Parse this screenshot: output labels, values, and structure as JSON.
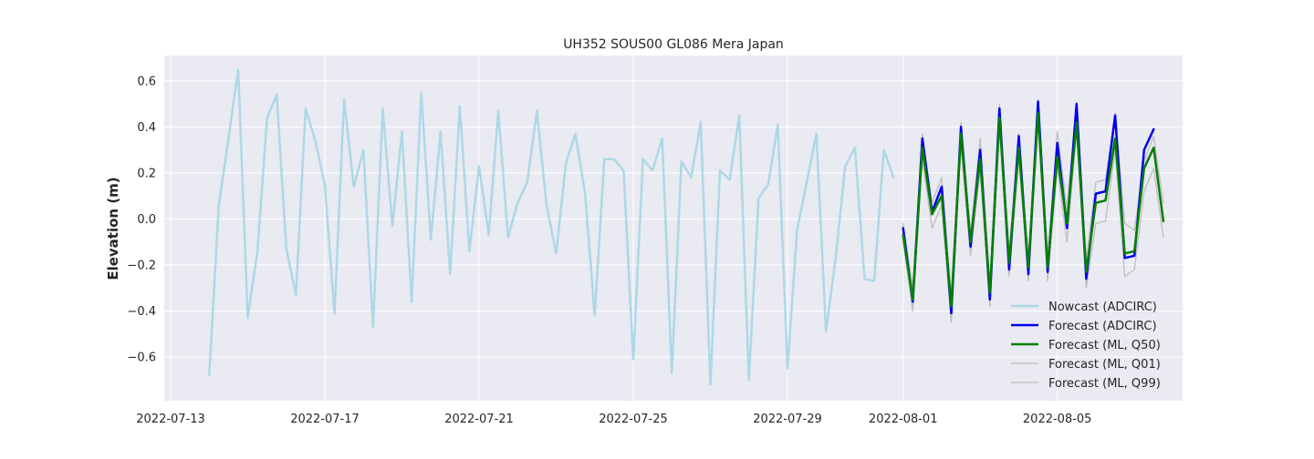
{
  "chart_data": {
    "type": "line",
    "title": "UH352 SOUS00 GL086 Mera Japan",
    "xlabel": "",
    "ylabel": "Elevation (m)",
    "xlim": [
      "2022-07-12T20:00",
      "2022-08-08T06:00"
    ],
    "ylim": [
      -0.79,
      0.71
    ],
    "x_ticks": [
      "2022-07-13",
      "2022-07-17",
      "2022-07-21",
      "2022-07-25",
      "2022-07-29",
      "2022-08-01",
      "2022-08-05"
    ],
    "y_ticks": [
      -0.6,
      -0.4,
      -0.2,
      0.0,
      0.2,
      0.4,
      0.6
    ],
    "y_tick_labels": [
      "−0.6",
      "−0.4",
      "−0.2",
      "0.0",
      "0.2",
      "0.4",
      "0.6"
    ],
    "grid": true,
    "legend_position": "lower-right",
    "series": [
      {
        "name": "Nowcast (ADCIRC)",
        "color": "#add8e6",
        "x": [
          "2022-07-14T00:00",
          "2022-07-14T06:00",
          "2022-07-14T12:00",
          "2022-07-14T18:00",
          "2022-07-15T00:00",
          "2022-07-15T06:00",
          "2022-07-15T12:00",
          "2022-07-15T18:00",
          "2022-07-16T00:00",
          "2022-07-16T06:00",
          "2022-07-16T12:00",
          "2022-07-16T18:00",
          "2022-07-17T00:00",
          "2022-07-17T06:00",
          "2022-07-17T12:00",
          "2022-07-17T18:00",
          "2022-07-18T00:00",
          "2022-07-18T06:00",
          "2022-07-18T12:00",
          "2022-07-18T18:00",
          "2022-07-19T00:00",
          "2022-07-19T06:00",
          "2022-07-19T12:00",
          "2022-07-19T18:00",
          "2022-07-20T00:00",
          "2022-07-20T06:00",
          "2022-07-20T12:00",
          "2022-07-20T18:00",
          "2022-07-21T00:00",
          "2022-07-21T06:00",
          "2022-07-21T12:00",
          "2022-07-21T18:00",
          "2022-07-22T00:00",
          "2022-07-22T06:00",
          "2022-07-22T12:00",
          "2022-07-22T18:00",
          "2022-07-23T00:00",
          "2022-07-23T06:00",
          "2022-07-23T12:00",
          "2022-07-23T18:00",
          "2022-07-24T00:00",
          "2022-07-24T06:00",
          "2022-07-24T12:00",
          "2022-07-24T18:00",
          "2022-07-25T00:00",
          "2022-07-25T06:00",
          "2022-07-25T12:00",
          "2022-07-25T18:00",
          "2022-07-26T00:00",
          "2022-07-26T06:00",
          "2022-07-26T12:00",
          "2022-07-26T18:00",
          "2022-07-27T00:00",
          "2022-07-27T06:00",
          "2022-07-27T12:00",
          "2022-07-27T18:00",
          "2022-07-28T00:00",
          "2022-07-28T06:00",
          "2022-07-28T12:00",
          "2022-07-28T18:00",
          "2022-07-29T00:00",
          "2022-07-29T06:00",
          "2022-07-29T12:00",
          "2022-07-29T18:00",
          "2022-07-30T00:00",
          "2022-07-30T06:00",
          "2022-07-30T12:00",
          "2022-07-30T18:00",
          "2022-07-31T00:00",
          "2022-07-31T06:00",
          "2022-07-31T12:00",
          "2022-07-31T18:00"
        ],
        "values": [
          -0.68,
          0.06,
          0.35,
          0.65,
          -0.43,
          -0.14,
          0.44,
          0.54,
          -0.13,
          -0.33,
          0.48,
          0.34,
          0.15,
          -0.41,
          0.52,
          0.14,
          0.3,
          -0.47,
          0.48,
          -0.03,
          0.38,
          -0.36,
          0.55,
          -0.09,
          0.38,
          -0.24,
          0.49,
          -0.14,
          0.23,
          -0.07,
          0.47,
          -0.08,
          0.07,
          0.16,
          0.47,
          0.06,
          -0.15,
          0.24,
          0.37,
          0.11,
          -0.42,
          0.26,
          0.26,
          0.21,
          -0.61,
          0.26,
          0.21,
          0.35,
          -0.67,
          0.25,
          0.18,
          0.42,
          -0.72,
          0.21,
          0.17,
          0.45,
          -0.7,
          0.09,
          0.15,
          0.41,
          -0.65,
          -0.05,
          0.16,
          0.37,
          -0.49,
          -0.17,
          0.23,
          0.31,
          -0.26,
          -0.27,
          0.3,
          0.18
        ]
      },
      {
        "name": "Forecast (ADCIRC)",
        "color": "#0000ee",
        "x": [
          "2022-08-01T00:00",
          "2022-08-01T06:00",
          "2022-08-01T12:00",
          "2022-08-01T18:00",
          "2022-08-02T00:00",
          "2022-08-02T06:00",
          "2022-08-02T12:00",
          "2022-08-02T18:00",
          "2022-08-03T00:00",
          "2022-08-03T06:00",
          "2022-08-03T12:00",
          "2022-08-03T18:00",
          "2022-08-04T00:00",
          "2022-08-04T06:00",
          "2022-08-04T12:00",
          "2022-08-04T18:00",
          "2022-08-05T00:00",
          "2022-08-05T06:00",
          "2022-08-05T12:00",
          "2022-08-05T18:00",
          "2022-08-06T00:00",
          "2022-08-06T06:00",
          "2022-08-06T12:00",
          "2022-08-06T18:00",
          "2022-08-07T00:00",
          "2022-08-07T06:00",
          "2022-08-07T12:00",
          "2022-08-07T18:00"
        ],
        "values": [
          -0.04,
          -0.36,
          0.35,
          0.03,
          0.14,
          -0.41,
          0.4,
          -0.12,
          0.3,
          -0.35,
          0.48,
          -0.22,
          0.36,
          -0.24,
          0.51,
          -0.23,
          0.33,
          -0.04,
          0.5,
          -0.26,
          0.11,
          0.12,
          0.45,
          -0.17,
          -0.16,
          0.3,
          0.39,
          null
        ]
      },
      {
        "name": "Forecast (ML, Q50)",
        "color": "#008000",
        "x": [
          "2022-08-01T00:00",
          "2022-08-01T06:00",
          "2022-08-01T12:00",
          "2022-08-01T18:00",
          "2022-08-02T00:00",
          "2022-08-02T06:00",
          "2022-08-02T12:00",
          "2022-08-02T18:00",
          "2022-08-03T00:00",
          "2022-08-03T06:00",
          "2022-08-03T12:00",
          "2022-08-03T18:00",
          "2022-08-04T00:00",
          "2022-08-04T06:00",
          "2022-08-04T12:00",
          "2022-08-04T18:00",
          "2022-08-05T00:00",
          "2022-08-05T06:00",
          "2022-08-05T12:00",
          "2022-08-05T18:00",
          "2022-08-06T00:00",
          "2022-08-06T06:00",
          "2022-08-06T12:00",
          "2022-08-06T18:00",
          "2022-08-07T00:00",
          "2022-08-07T06:00",
          "2022-08-07T12:00",
          "2022-08-07T18:00"
        ],
        "values": [
          -0.07,
          -0.35,
          0.31,
          0.02,
          0.1,
          -0.38,
          0.37,
          -0.1,
          0.26,
          -0.32,
          0.44,
          -0.19,
          0.31,
          -0.21,
          0.46,
          -0.21,
          0.27,
          -0.02,
          0.42,
          -0.23,
          0.07,
          0.08,
          0.35,
          -0.15,
          -0.14,
          0.22,
          0.31,
          -0.01
        ]
      },
      {
        "name": "Forecast (ML, Q01)",
        "color": "#bdbdbd",
        "x": [
          "2022-08-01T00:00",
          "2022-08-01T06:00",
          "2022-08-01T12:00",
          "2022-08-01T18:00",
          "2022-08-02T00:00",
          "2022-08-02T06:00",
          "2022-08-02T12:00",
          "2022-08-02T18:00",
          "2022-08-03T00:00",
          "2022-08-03T06:00",
          "2022-08-03T12:00",
          "2022-08-03T18:00",
          "2022-08-04T00:00",
          "2022-08-04T06:00",
          "2022-08-04T12:00",
          "2022-08-04T18:00",
          "2022-08-05T00:00",
          "2022-08-05T06:00",
          "2022-08-05T12:00",
          "2022-08-05T18:00",
          "2022-08-06T00:00",
          "2022-08-06T06:00",
          "2022-08-06T12:00",
          "2022-08-06T18:00",
          "2022-08-07T00:00",
          "2022-08-07T06:00",
          "2022-08-07T12:00",
          "2022-08-07T18:00"
        ],
        "values": [
          -0.1,
          -0.4,
          0.26,
          -0.04,
          0.06,
          -0.45,
          0.32,
          -0.16,
          0.21,
          -0.38,
          0.4,
          -0.25,
          0.26,
          -0.27,
          0.42,
          -0.27,
          0.22,
          -0.1,
          0.38,
          -0.3,
          -0.02,
          -0.01,
          0.3,
          -0.25,
          -0.22,
          0.12,
          0.22,
          -0.08
        ]
      },
      {
        "name": "Forecast (ML, Q99)",
        "color": "#bdbdbd",
        "x": [
          "2022-08-01T00:00",
          "2022-08-01T06:00",
          "2022-08-01T12:00",
          "2022-08-01T18:00",
          "2022-08-02T00:00",
          "2022-08-02T06:00",
          "2022-08-02T12:00",
          "2022-08-02T18:00",
          "2022-08-03T00:00",
          "2022-08-03T06:00",
          "2022-08-03T12:00",
          "2022-08-03T18:00",
          "2022-08-04T00:00",
          "2022-08-04T06:00",
          "2022-08-04T12:00",
          "2022-08-04T18:00",
          "2022-08-05T00:00",
          "2022-08-05T06:00",
          "2022-08-05T12:00",
          "2022-08-05T18:00",
          "2022-08-06T00:00",
          "2022-08-06T06:00",
          "2022-08-06T12:00",
          "2022-08-06T18:00",
          "2022-08-07T00:00",
          "2022-08-07T06:00",
          "2022-08-07T12:00",
          "2022-08-07T18:00"
        ],
        "values": [
          -0.02,
          -0.3,
          0.37,
          0.07,
          0.18,
          -0.33,
          0.42,
          -0.06,
          0.35,
          -0.28,
          0.5,
          -0.14,
          0.37,
          -0.17,
          0.52,
          -0.16,
          0.38,
          0.04,
          0.51,
          -0.18,
          0.16,
          0.17,
          0.46,
          -0.02,
          -0.05,
          0.25,
          0.36,
          0.07
        ]
      }
    ]
  }
}
